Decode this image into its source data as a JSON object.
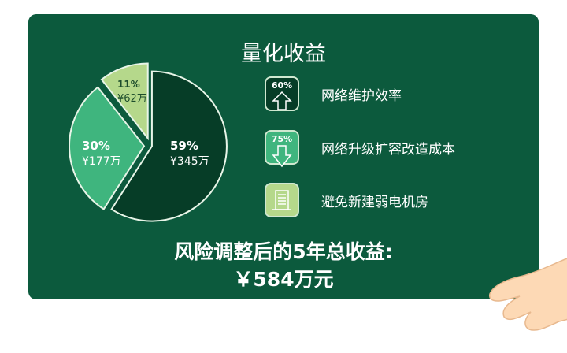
{
  "title": "量化收益",
  "chart_data": {
    "type": "pie",
    "title": "",
    "slices": [
      {
        "percent_label": "59%",
        "value_label": "¥345万",
        "value": 345,
        "color": "#063d27"
      },
      {
        "percent_label": "30%",
        "value_label": "¥177万",
        "value": 177,
        "color": "#3fb57e"
      },
      {
        "percent_label": "11%",
        "value_label": "¥62万",
        "value": 62,
        "color": "#b5d88b"
      }
    ]
  },
  "features": [
    {
      "badge": "60%",
      "label": "网络维护效率",
      "icon": "arrow-up-icon",
      "color": "#063d27"
    },
    {
      "badge": "75%",
      "label": "网络升级扩容改造成本",
      "icon": "arrow-down-icon",
      "color": "#3fb57e"
    },
    {
      "badge": "",
      "label": "避免新建弱电机房",
      "icon": "building-icon",
      "color": "#b5d88b"
    }
  ],
  "summary": {
    "line1": "风险调整后的5年总收益:",
    "line2": "￥584万元"
  }
}
